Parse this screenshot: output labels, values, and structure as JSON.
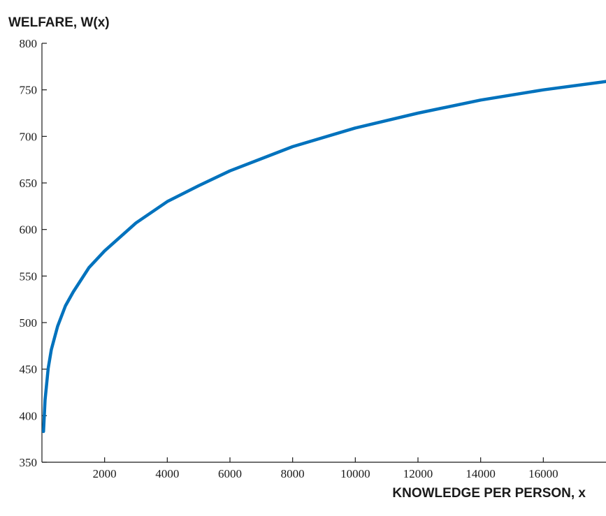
{
  "chart_data": {
    "type": "line",
    "title": "",
    "ylabel": "WELFARE, W(x)",
    "xlabel": "KNOWLEDGE PER PERSON, x",
    "xlim": [
      0,
      18000
    ],
    "ylim": [
      350,
      800
    ],
    "xticks": [
      2000,
      4000,
      6000,
      8000,
      10000,
      12000,
      14000,
      16000
    ],
    "yticks": [
      350,
      400,
      450,
      500,
      550,
      600,
      650,
      700,
      750,
      800
    ],
    "grid": false,
    "legend": "none",
    "series": [
      {
        "color": "#0072bd",
        "x": [
          50,
          100,
          200,
          300,
          500,
          750,
          1000,
          1500,
          2000,
          3000,
          4000,
          5000,
          6000,
          8000,
          10000,
          12000,
          14000,
          16000,
          18000
        ],
        "y": [
          383,
          417,
          451,
          471,
          496,
          518,
          533,
          559,
          577,
          607,
          630,
          647,
          663,
          689,
          709,
          725,
          739,
          750,
          759
        ]
      }
    ]
  }
}
